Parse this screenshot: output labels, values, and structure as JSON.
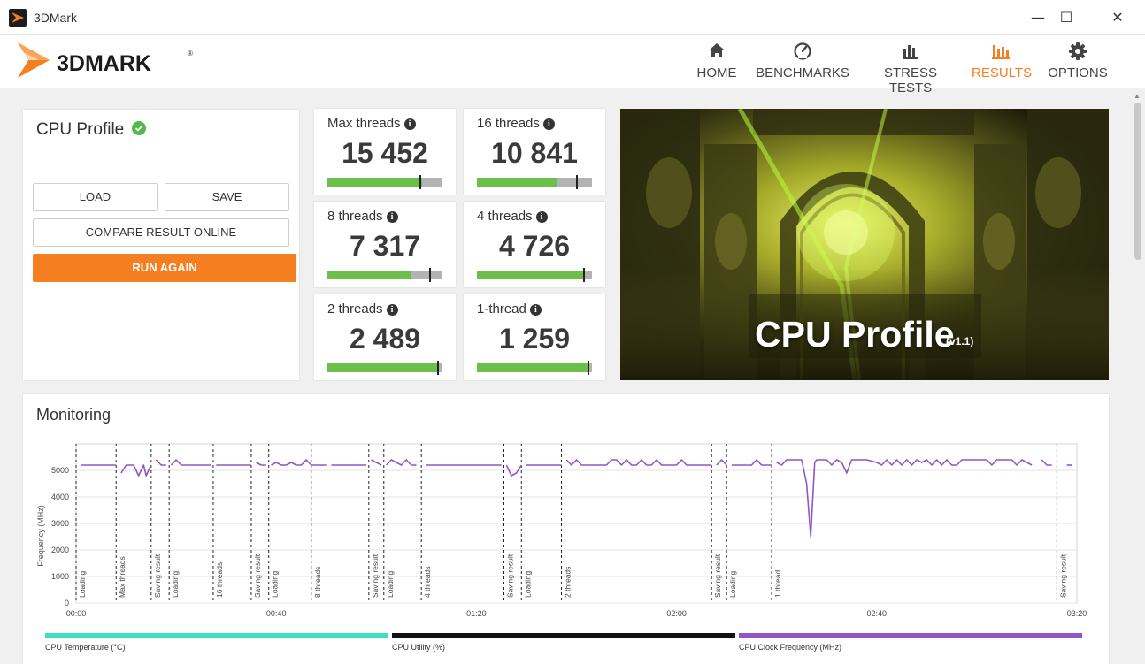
{
  "window": {
    "title": "3DMark",
    "minimize": "—",
    "maximize": "☐",
    "close": "✕"
  },
  "logo": {
    "text": "3DMARK",
    "reg": "®"
  },
  "nav": [
    {
      "label": "HOME",
      "icon": "home-icon",
      "active": false
    },
    {
      "label": "BENCHMARKS",
      "icon": "gauge-icon",
      "active": false
    },
    {
      "label": "STRESS TESTS",
      "icon": "bar-chart-icon",
      "active": false
    },
    {
      "label": "RESULTS",
      "icon": "results-chart-icon",
      "active": true
    },
    {
      "label": "OPTIONS",
      "icon": "gear-icon",
      "active": false
    }
  ],
  "accent_color": "#f57f20",
  "left_panel": {
    "title": "CPU Profile",
    "load": "LOAD",
    "save": "SAVE",
    "compare": "COMPARE RESULT ONLINE",
    "run_again": "RUN AGAIN"
  },
  "tiles": [
    {
      "label": "Max threads",
      "score": "15 452",
      "fill_fraction": 0.82,
      "marker_fraction": 0.81
    },
    {
      "label": "16 threads",
      "score": "10 841",
      "fill_fraction": 0.69,
      "marker_fraction": 0.87
    },
    {
      "label": "8 threads",
      "score": "7 317",
      "fill_fraction": 0.72,
      "marker_fraction": 0.89
    },
    {
      "label": "4 threads",
      "score": "4 726",
      "fill_fraction": 0.92,
      "marker_fraction": 0.93
    },
    {
      "label": "2 threads",
      "score": "2 489",
      "fill_fraction": 0.97,
      "marker_fraction": 0.96
    },
    {
      "label": "1-thread",
      "score": "1 259",
      "fill_fraction": 0.98,
      "marker_fraction": 0.97
    }
  ],
  "hero": {
    "title": "CPU Profile",
    "version": "(v1.1)"
  },
  "monitoring": {
    "title": "Monitoring",
    "legend": [
      {
        "label": "CPU Temperature (°C)",
        "color": "#3de0c0"
      },
      {
        "label": "CPU Utility (%)",
        "color": "#111111"
      },
      {
        "label": "CPU Clock Frequency (MHz)",
        "color": "#9057c5"
      }
    ]
  },
  "chart_data": {
    "type": "line",
    "xlabel": "",
    "ylabel": "Frequency (MHz)",
    "xlim": [
      0,
      200
    ],
    "ylim": [
      0,
      6000
    ],
    "xticks": [
      {
        "value": 0,
        "label": "00:00"
      },
      {
        "value": 40,
        "label": "00:40"
      },
      {
        "value": 80,
        "label": "01:20"
      },
      {
        "value": 120,
        "label": "02:00"
      },
      {
        "value": 160,
        "label": "02:40"
      },
      {
        "value": 200,
        "label": "03:20"
      }
    ],
    "yticks": [
      0,
      1000,
      2000,
      3000,
      4000,
      5000
    ],
    "grid": true,
    "markers": [
      {
        "t": 0,
        "label": "Loading"
      },
      {
        "t": 8,
        "label": "Max threads"
      },
      {
        "t": 15,
        "label": "Saving result"
      },
      {
        "t": 18.6,
        "label": "Loading"
      },
      {
        "t": 27.4,
        "label": "16 threads"
      },
      {
        "t": 35,
        "label": "Saving result"
      },
      {
        "t": 38.5,
        "label": "Loading"
      },
      {
        "t": 47,
        "label": "8 threads"
      },
      {
        "t": 58.5,
        "label": "Saving result"
      },
      {
        "t": 61.5,
        "label": "Loading"
      },
      {
        "t": 69,
        "label": "4 threads"
      },
      {
        "t": 85.5,
        "label": "Saving result"
      },
      {
        "t": 89,
        "label": "Loading"
      },
      {
        "t": 97,
        "label": "2 threads"
      },
      {
        "t": 127,
        "label": "Saving result"
      },
      {
        "t": 130,
        "label": "Loading"
      },
      {
        "t": 139,
        "label": "1 thread"
      },
      {
        "t": 196,
        "label": "Saving result"
      }
    ],
    "series": [
      {
        "name": "CPU Clock Frequency (MHz)",
        "color": "#9057c5",
        "segments": [
          [
            [
              1,
              5200
            ],
            [
              8,
              5200
            ]
          ],
          [
            [
              9,
              4900
            ],
            [
              10,
              5200
            ],
            [
              11.5,
              5200
            ],
            [
              12.5,
              4800
            ],
            [
              13.5,
              5200
            ],
            [
              14,
              4800
            ],
            [
              15,
              5200
            ]
          ],
          [
            [
              16,
              5400
            ],
            [
              17,
              5200
            ],
            [
              18,
              5200
            ]
          ],
          [
            [
              19,
              5200
            ],
            [
              20,
              5400
            ],
            [
              21,
              5200
            ],
            [
              27,
              5200
            ]
          ],
          [
            [
              28,
              5200
            ],
            [
              35,
              5200
            ]
          ],
          [
            [
              36,
              5300
            ],
            [
              37,
              5200
            ],
            [
              38,
              5200
            ]
          ],
          [
            [
              39,
              5200
            ],
            [
              40,
              5300
            ],
            [
              41,
              5200
            ],
            [
              42,
              5200
            ],
            [
              43,
              5300
            ],
            [
              44,
              5200
            ],
            [
              45,
              5200
            ],
            [
              46,
              5400
            ],
            [
              47,
              5200
            ],
            [
              50,
              5200
            ]
          ],
          [
            [
              51,
              5200
            ],
            [
              58,
              5200
            ]
          ],
          [
            [
              59,
              5400
            ],
            [
              60,
              5300
            ],
            [
              61,
              5200
            ]
          ],
          [
            [
              62,
              5200
            ],
            [
              63,
              5400
            ],
            [
              64,
              5300
            ],
            [
              65,
              5200
            ],
            [
              66,
              5400
            ],
            [
              67,
              5200
            ],
            [
              68,
              5200
            ]
          ],
          [
            [
              70,
              5200
            ],
            [
              85,
              5200
            ]
          ],
          [
            [
              86,
              5200
            ],
            [
              87,
              4800
            ],
            [
              88,
              4900
            ],
            [
              89,
              5200
            ]
          ],
          [
            [
              90,
              5200
            ],
            [
              97,
              5200
            ]
          ],
          [
            [
              98,
              5400
            ],
            [
              99,
              5200
            ],
            [
              100,
              5400
            ],
            [
              101,
              5200
            ],
            [
              106,
              5200
            ],
            [
              107,
              5400
            ],
            [
              108,
              5400
            ],
            [
              109,
              5200
            ],
            [
              110,
              5400
            ],
            [
              111,
              5200
            ],
            [
              112,
              5200
            ],
            [
              113,
              5400
            ],
            [
              114,
              5200
            ],
            [
              115,
              5200
            ],
            [
              116,
              5400
            ],
            [
              117,
              5200
            ],
            [
              120,
              5200
            ],
            [
              121,
              5400
            ],
            [
              122,
              5200
            ],
            [
              127,
              5200
            ]
          ],
          [
            [
              128,
              5200
            ],
            [
              129,
              5400
            ],
            [
              130,
              5200
            ]
          ],
          [
            [
              131,
              5200
            ],
            [
              135,
              5200
            ],
            [
              136,
              5400
            ],
            [
              137,
              5200
            ],
            [
              139,
              5200
            ]
          ],
          [
            [
              140,
              5300
            ],
            [
              141,
              5200
            ],
            [
              142,
              5400
            ],
            [
              144,
              5400
            ],
            [
              145,
              5400
            ],
            [
              146,
              4500
            ],
            [
              146.8,
              2500
            ],
            [
              147.6,
              5300
            ],
            [
              148,
              5400
            ],
            [
              150,
              5400
            ],
            [
              151,
              5200
            ],
            [
              152,
              5400
            ],
            [
              153,
              5300
            ],
            [
              154,
              4900
            ],
            [
              155,
              5400
            ],
            [
              158,
              5400
            ],
            [
              160,
              5300
            ],
            [
              161,
              5200
            ],
            [
              162,
              5400
            ],
            [
              163,
              5200
            ],
            [
              164,
              5400
            ],
            [
              165,
              5200
            ],
            [
              166,
              5400
            ],
            [
              167,
              5200
            ],
            [
              168,
              5400
            ],
            [
              169,
              5300
            ],
            [
              170,
              5400
            ],
            [
              171,
              5200
            ],
            [
              172,
              5400
            ],
            [
              173,
              5200
            ],
            [
              174,
              5400
            ],
            [
              175,
              5200
            ],
            [
              176,
              5200
            ],
            [
              177,
              5400
            ],
            [
              180,
              5400
            ],
            [
              182,
              5400
            ],
            [
              183,
              5200
            ],
            [
              184,
              5400
            ],
            [
              187,
              5400
            ],
            [
              188,
              5200
            ],
            [
              189,
              5400
            ],
            [
              190,
              5300
            ],
            [
              191,
              5200
            ]
          ],
          [
            [
              193,
              5400
            ],
            [
              194,
              5200
            ],
            [
              195,
              5200
            ]
          ],
          [
            [
              198,
              5200
            ],
            [
              199,
              5200
            ]
          ]
        ]
      }
    ]
  }
}
